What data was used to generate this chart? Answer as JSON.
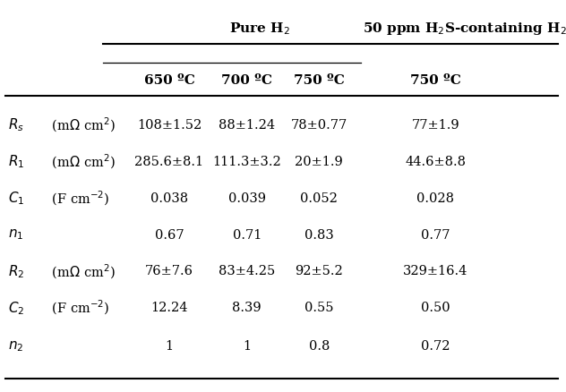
{
  "figsize": [
    6.32,
    4.39
  ],
  "dpi": 100,
  "bg_color": "#ffffff",
  "text_color": "#000000",
  "line_color": "#000000",
  "col_headers": [
    "650 ºC",
    "700 ºC",
    "750 ºC",
    "750 ºC"
  ],
  "data": [
    [
      "108±1.52",
      "88±1.24",
      "78±0.77",
      "77±1.9"
    ],
    [
      "285.6±8.1",
      "111.3±3.2",
      "20±1.9",
      "44.6±8.8"
    ],
    [
      "0.038",
      "0.039",
      "0.052",
      "0.028"
    ],
    [
      "0.67",
      "0.71",
      "0.83",
      "0.77"
    ],
    [
      "76±7.6",
      "83±4.25",
      "92±5.2",
      "329±16.4"
    ],
    [
      "12.24",
      "8.39",
      "0.55",
      "0.50"
    ],
    [
      "1",
      "1",
      "0.8",
      "0.72"
    ]
  ],
  "row_italic": [
    "$R_s$",
    "$R_1$",
    "$C_1$",
    "$n_1$",
    "$R_2$",
    "$C_2$",
    "$n_2$"
  ],
  "row_units": [
    " (m$\\Omega$ cm$^2$)",
    " (m$\\Omega$ cm$^2$)",
    " (F cm$^{-2}$)",
    "",
    " (m$\\Omega$ cm$^2$)",
    " (F cm$^{-2}$)",
    ""
  ]
}
